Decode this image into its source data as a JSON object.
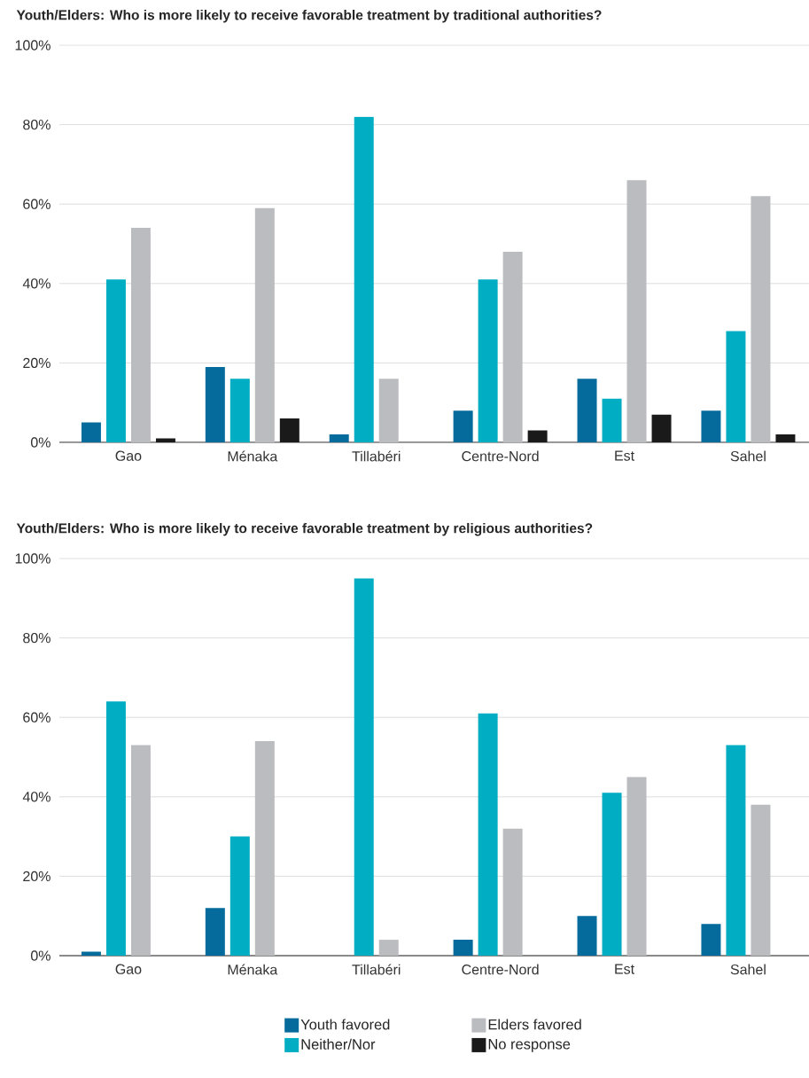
{
  "chart_data": [
    {
      "type": "bar",
      "title": "Youth/Elders: Who is more likely to receive favorable treatment by traditional authorities?",
      "categories": [
        "Gao",
        "Ménaka",
        "Tillabéri",
        "Centre-Nord",
        "Est",
        "Sahel"
      ],
      "series": [
        {
          "color": "#046b9c",
          "values": [
            5,
            19,
            2,
            8,
            16,
            8
          ]
        },
        {
          "color": "#00adc2",
          "values": [
            41,
            16,
            82,
            41,
            11,
            28
          ]
        },
        {
          "color": "#bbbcc0",
          "values": [
            54,
            59,
            16,
            48,
            66,
            62
          ]
        },
        {
          "color": "#1a1a1a",
          "values": [
            1,
            6,
            0,
            3,
            7,
            2
          ]
        }
      ],
      "ylim": [
        0,
        100
      ],
      "yticks": [
        {
          "value": 0,
          "label": "0%"
        },
        {
          "value": 20,
          "label": "20%"
        },
        {
          "value": 40,
          "label": "40%"
        },
        {
          "value": 60,
          "label": "60%"
        },
        {
          "value": 80,
          "label": "80%"
        },
        {
          "value": 100,
          "label": "100%"
        }
      ],
      "grid": "y",
      "legend": false
    },
    {
      "type": "bar",
      "title": "Youth/Elders: Who is more likely to receive favorable treatment by religious authorities?",
      "categories": [
        "Gao",
        "Ménaka",
        "Tillabéri",
        "Centre-Nord",
        "Est",
        "Sahel"
      ],
      "series": [
        {
          "name": "Youth favored",
          "color": "#046b9c",
          "values": [
            1,
            12,
            0,
            4,
            10,
            8
          ]
        },
        {
          "name": "Neither/Nor",
          "color": "#00adc2",
          "values": [
            64,
            30,
            95,
            61,
            41,
            53
          ]
        },
        {
          "name": "Elders favored",
          "color": "#bbbcc0",
          "values": [
            53,
            54,
            4,
            32,
            45,
            38
          ]
        },
        {
          "name": "No response",
          "color": "#1a1a1a",
          "values": [
            0,
            0,
            0,
            0,
            0,
            0
          ]
        }
      ],
      "ylim": [
        0,
        100
      ],
      "yticks": [
        {
          "value": 0,
          "label": "0%"
        },
        {
          "value": 20,
          "label": "20%"
        },
        {
          "value": 40,
          "label": "40%"
        },
        {
          "value": 60,
          "label": "60%"
        },
        {
          "value": 80,
          "label": "80%"
        },
        {
          "value": 100,
          "label": "100%"
        }
      ],
      "grid": "y",
      "legend": "bottom"
    }
  ]
}
